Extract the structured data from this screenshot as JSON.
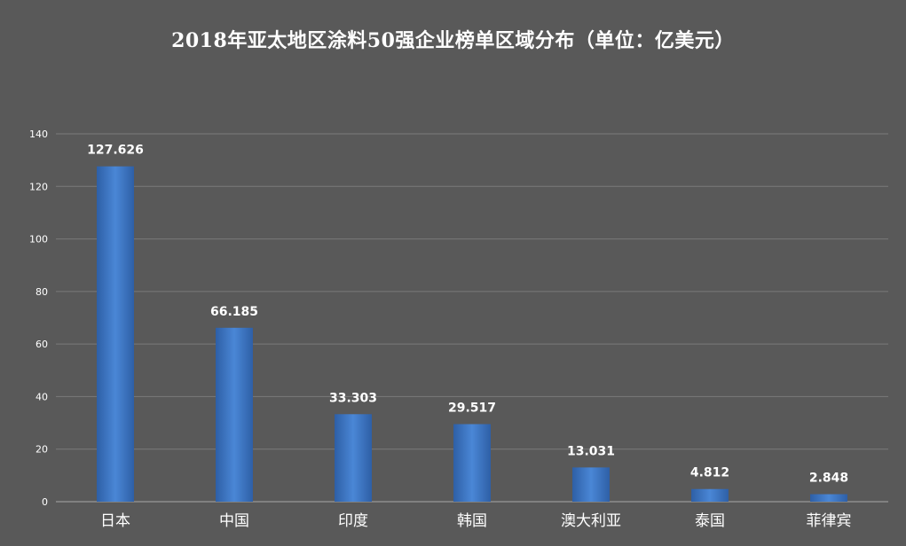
{
  "chart_data": {
    "type": "bar",
    "title": "2018年亚太地区涂料50强企业榜单区域分布（单位：亿美元）",
    "categories": [
      "日本",
      "中国",
      "印度",
      "韩国",
      "澳大利亚",
      "泰国",
      "菲律宾"
    ],
    "values": [
      127.626,
      66.185,
      33.303,
      29.517,
      13.031,
      4.812,
      2.848
    ],
    "value_labels": [
      "127.626",
      "66.185",
      "33.303",
      "29.517",
      "13.031",
      "4.812",
      "2.848"
    ],
    "ylim": [
      0,
      140
    ],
    "yticks": [
      0,
      20,
      40,
      60,
      80,
      100,
      120,
      140
    ],
    "xlabel": "",
    "ylabel": "",
    "grid": true,
    "legend": "none",
    "colors": {
      "background": "#595959",
      "bar": "#3c78c8",
      "grid": "#7a7a7a",
      "text": "#ffffff"
    }
  }
}
